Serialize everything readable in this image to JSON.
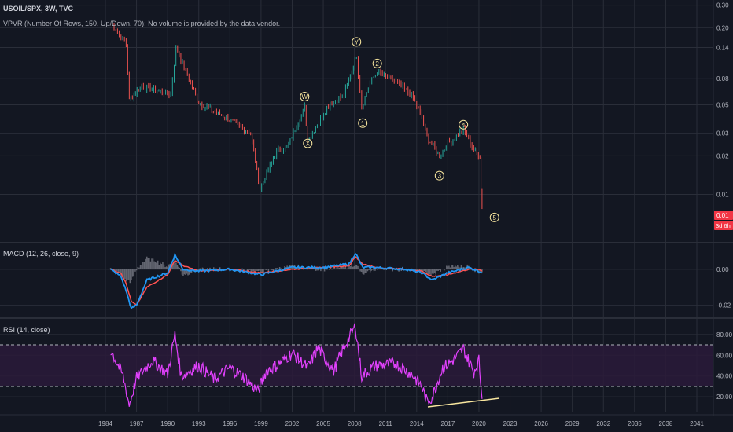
{
  "header": {
    "symbol_line": "USOIL/SPX, 3W, TVC",
    "vpvr_line": "VPVR (Number Of Rows, 150, Up/Down, 70): No volume is provided by the data vendor.",
    "macd_title": "MACD (12, 26, close, 9)",
    "rsi_title": "RSI (14, close)"
  },
  "colors": {
    "background": "#131722",
    "grid": "#2a2e39",
    "candle_up": "#26a69a",
    "candle_down": "#ef5350",
    "macd_line": "#2196f3",
    "signal_line": "#ff5252",
    "histogram": "#787b86",
    "rsi_line": "#e040fb",
    "rsi_band": "#2a1a3a",
    "trendline": "#f9e79f",
    "wave_label": "#f9e79f",
    "price_tag": "#f23645"
  },
  "price_axis": {
    "ticks": [
      "0.30",
      "0.20",
      "0.14",
      "0.08",
      "0.05",
      "0.03",
      "0.02",
      "0.01"
    ],
    "current_value": "0.01",
    "countdown": "3d 6h"
  },
  "macd_axis": {
    "ticks": [
      "0.00",
      "-0.02"
    ]
  },
  "rsi_axis": {
    "ticks": [
      "80.00",
      "60.00",
      "40.00",
      "20.00"
    ],
    "upper_band": 70,
    "lower_band": 30
  },
  "time_axis": {
    "labels": [
      "1984",
      "1987",
      "1990",
      "1993",
      "1996",
      "1999",
      "2002",
      "2005",
      "2008",
      "2011",
      "2014",
      "2017",
      "2020",
      "2023",
      "2026",
      "2029",
      "2032",
      "2035",
      "2038",
      "2041"
    ]
  },
  "wave_labels": [
    {
      "label": "W",
      "year": 2003.2,
      "price": 0.058
    },
    {
      "label": "X",
      "year": 2003.5,
      "price": 0.025
    },
    {
      "label": "Y",
      "year": 2008.2,
      "price": 0.155
    },
    {
      "label": "1",
      "year": 2008.8,
      "price": 0.036
    },
    {
      "label": "2",
      "year": 2010.2,
      "price": 0.105
    },
    {
      "label": "3",
      "year": 2016.2,
      "price": 0.014
    },
    {
      "label": "4",
      "year": 2018.5,
      "price": 0.035
    },
    {
      "label": "5",
      "year": 2021.5,
      "price": 0.0066
    }
  ],
  "chart_data": [
    {
      "type": "line",
      "title": "USOIL/SPX, 3W, TVC",
      "scale": "log",
      "ylim": [
        0.0065,
        0.32
      ],
      "x": [
        1984.5,
        1986.0,
        1986.3,
        1987.5,
        1990.3,
        1990.8,
        1993.0,
        1995.5,
        1998.0,
        1998.9,
        2000.5,
        2001.5,
        2003.2,
        2003.5,
        2005.5,
        2007.0,
        2008.2,
        2008.7,
        2009.5,
        2010.2,
        2012.0,
        2013.5,
        2014.5,
        2015.0,
        2016.2,
        2017.0,
        2018.5,
        2019.5,
        2020.1,
        2020.2,
        2020.3
      ],
      "values": [
        0.22,
        0.15,
        0.055,
        0.07,
        0.06,
        0.14,
        0.052,
        0.04,
        0.03,
        0.011,
        0.022,
        0.023,
        0.048,
        0.026,
        0.05,
        0.06,
        0.12,
        0.048,
        0.075,
        0.09,
        0.075,
        0.06,
        0.04,
        0.028,
        0.02,
        0.025,
        0.032,
        0.022,
        0.02,
        0.011,
        0.008
      ]
    },
    {
      "type": "line",
      "title": "MACD (12, 26, close, 9)",
      "ylim": [
        -0.025,
        0.01
      ],
      "x": [
        1984.5,
        1985.5,
        1986.0,
        1986.5,
        1987.0,
        1988.0,
        1990.0,
        1990.7,
        1991.5,
        1993.0,
        1996.0,
        1999.0,
        2002.0,
        2005.0,
        2007.5,
        2008.1,
        2008.8,
        2010.0,
        2013.0,
        2014.5,
        2015.5,
        2017.0,
        2019.0,
        2020.0,
        2020.3
      ],
      "series": [
        {
          "name": "MACD",
          "values": [
            0.0,
            -0.004,
            -0.012,
            -0.022,
            -0.02,
            -0.006,
            -0.002,
            0.008,
            0.0,
            -0.001,
            0.0,
            -0.003,
            0.001,
            0.001,
            0.003,
            0.009,
            0.001,
            0.001,
            0.0,
            -0.002,
            -0.006,
            -0.002,
            0.001,
            -0.001,
            -0.002
          ]
        },
        {
          "name": "Signal",
          "values": [
            0.0,
            -0.002,
            -0.008,
            -0.018,
            -0.02,
            -0.01,
            -0.003,
            0.005,
            0.002,
            -0.001,
            0.0,
            -0.002,
            0.0,
            0.001,
            0.002,
            0.007,
            0.003,
            0.001,
            0.0,
            -0.001,
            -0.004,
            -0.003,
            0.0,
            0.0,
            -0.001
          ]
        }
      ]
    },
    {
      "type": "line",
      "title": "RSI (14, close)",
      "ylim": [
        5,
        95
      ],
      "x": [
        1984.5,
        1985.0,
        1985.7,
        1986.3,
        1987.0,
        1988.5,
        1990.0,
        1990.7,
        1991.3,
        1993.0,
        1994.5,
        1996.0,
        1997.5,
        1998.7,
        1999.5,
        2000.5,
        2002.0,
        2003.5,
        2004.5,
        2006.0,
        2007.0,
        2008.1,
        2008.7,
        2010.0,
        2012.0,
        2013.5,
        2014.5,
        2015.0,
        2015.5,
        2016.5,
        2017.5,
        2018.5,
        2019.5,
        2020.0,
        2020.3
      ],
      "values": [
        65,
        55,
        40,
        12,
        38,
        55,
        42,
        80,
        40,
        50,
        37,
        48,
        38,
        25,
        45,
        50,
        62,
        48,
        67,
        45,
        68,
        88,
        40,
        50,
        52,
        42,
        30,
        15,
        20,
        48,
        55,
        66,
        44,
        55,
        18
      ]
    }
  ]
}
